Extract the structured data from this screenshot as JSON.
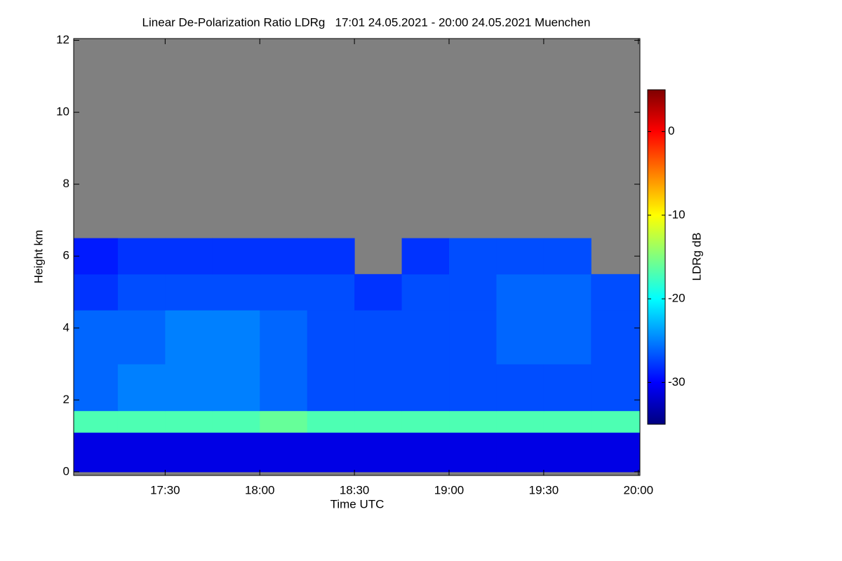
{
  "chart_data": {
    "type": "heatmap",
    "title": "Linear De-Polarization Ratio LDRg   17:01 24.05.2021 - 20:00 24.05.2021 Muenchen",
    "xlabel": "Time UTC",
    "ylabel": "Height km",
    "colorbar_label": "LDRg dB",
    "x_edges": [
      17.0167,
      17.25,
      17.5,
      17.75,
      18.0,
      18.25,
      18.5,
      18.75,
      19.0,
      19.25,
      19.5,
      19.75,
      20.0083
    ],
    "y_edges": [
      0,
      1.1,
      1.7,
      3,
      4.5,
      5.5,
      6.5,
      12
    ],
    "values": [
      [
        -31,
        -31,
        -31,
        -31,
        -31,
        -31,
        -31,
        -31,
        -31,
        -31,
        -31,
        -31
      ],
      [
        -17,
        -17,
        -17,
        -17,
        -16,
        -17,
        -17,
        -17,
        -17,
        -17,
        -17,
        -17
      ],
      [
        -26,
        -25,
        -25,
        -25,
        -26,
        -27,
        -27,
        -27,
        -27,
        -27,
        -27,
        -27
      ],
      [
        -26,
        -26,
        -25,
        -25,
        -26,
        -27,
        -27,
        -27,
        -27,
        -26,
        -26,
        -27
      ],
      [
        -28,
        -27,
        -27,
        -27,
        -27,
        -27,
        -28,
        -27,
        -27,
        -26,
        -26,
        -27
      ],
      [
        -29,
        -28,
        -28,
        -28,
        -28,
        -28,
        null,
        -28,
        -27,
        -27,
        -27,
        null
      ],
      [
        null,
        null,
        null,
        null,
        null,
        null,
        null,
        null,
        null,
        null,
        null,
        null
      ]
    ],
    "xlim": [
      17.0167,
      20.0083
    ],
    "xticks": [
      {
        "value": 17.5,
        "label": "17:30"
      },
      {
        "value": 18.0,
        "label": "18:00"
      },
      {
        "value": 18.5,
        "label": "18:30"
      },
      {
        "value": 19.0,
        "label": "19:00"
      },
      {
        "value": 19.5,
        "label": "19:30"
      },
      {
        "value": 20.0,
        "label": "20:00"
      }
    ],
    "ylim": [
      -0.1,
      12.05
    ],
    "yticks": [
      0,
      2,
      4,
      6,
      8,
      10,
      12
    ],
    "clim": [
      -35,
      5
    ],
    "cticks": [
      0,
      -10,
      -20,
      -30
    ],
    "colormap": [
      "#00007f",
      "#0000ff",
      "#0080ff",
      "#00ffff",
      "#80ff80",
      "#ffff00",
      "#ff8000",
      "#ff0000",
      "#7f0000"
    ],
    "background": "#808080"
  }
}
